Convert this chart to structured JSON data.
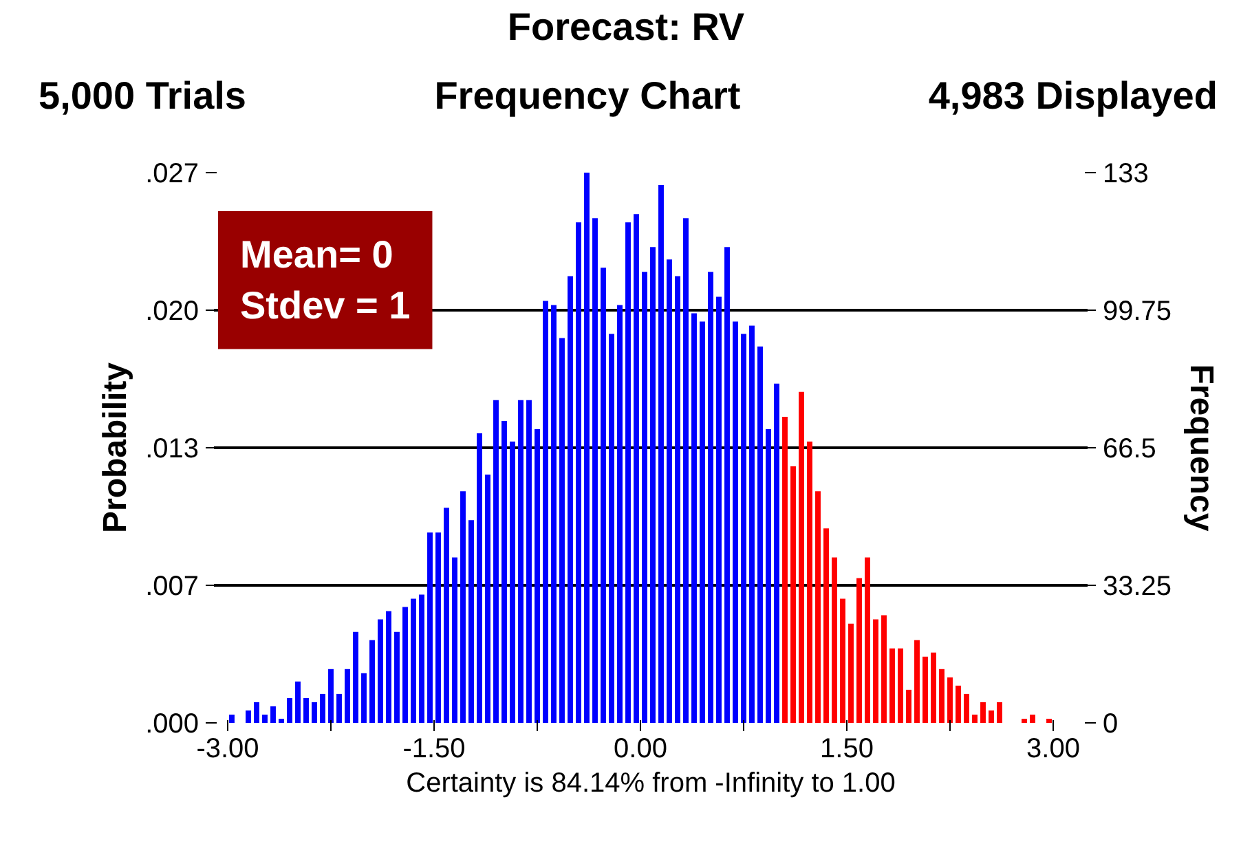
{
  "chart_data": {
    "type": "histogram",
    "title": "Forecast: RV",
    "subtitle": "Frequency Chart",
    "annotations": [
      "5,000 Trials",
      "4,983 Displayed",
      "Mean= 0\nStdev = 1"
    ],
    "xlabel": "Certainty is 84.14% from -Infinity to 1.00",
    "ylabel": "Probability",
    "y2label": "Frequency",
    "bins": [
      -3,
      -2.94,
      -2.88,
      -2.82,
      -2.76,
      -2.7,
      -2.64,
      -2.58,
      -2.52,
      -2.46,
      -2.4,
      -2.34,
      -2.28,
      -2.22,
      -2.16,
      -2.1,
      -2.04,
      -1.98,
      -1.92,
      -1.86,
      -1.8,
      -1.74,
      -1.68,
      -1.62,
      -1.56,
      -1.5,
      -1.44,
      -1.38,
      -1.32,
      -1.26,
      -1.2,
      -1.14,
      -1.08,
      -1.02,
      -0.96,
      -0.9,
      -0.84,
      -0.78,
      -0.72,
      -0.66,
      -0.6,
      -0.54,
      -0.48,
      -0.42,
      -0.36,
      -0.3,
      -0.24,
      -0.18,
      -0.12,
      -0.06,
      0,
      0.06,
      0.12,
      0.18,
      0.24,
      0.3,
      0.36,
      0.42,
      0.48,
      0.54,
      0.6,
      0.66,
      0.72,
      0.78,
      0.84,
      0.9,
      0.96,
      1.02,
      1.08,
      1.14,
      1.2,
      1.26,
      1.32,
      1.38,
      1.44,
      1.5,
      1.56,
      1.62,
      1.68,
      1.74,
      1.8,
      1.86,
      1.92,
      1.98,
      2.04,
      2.1,
      2.16,
      2.22,
      2.28,
      2.34,
      2.4,
      2.46,
      2.52,
      2.58,
      2.64,
      2.7,
      2.76,
      2.82,
      2.88,
      2.94,
      3
    ],
    "series": [
      {
        "axis": "y2",
        "values": [
          2,
          0,
          3,
          5,
          2,
          4,
          1,
          6,
          10,
          6,
          5,
          7,
          13,
          7,
          13,
          22,
          12,
          20,
          25,
          27,
          22,
          28,
          30,
          31,
          46,
          46,
          52,
          40,
          56,
          49,
          70,
          60,
          78,
          73,
          68,
          78,
          78,
          71,
          102,
          101,
          93,
          108,
          121,
          133,
          122,
          110,
          94,
          101,
          121,
          123,
          109,
          115,
          130,
          112,
          108,
          122,
          99,
          97,
          109,
          103,
          115,
          97,
          94,
          96,
          91,
          71,
          82,
          74,
          62,
          80,
          68,
          56,
          47,
          40,
          30,
          24,
          35,
          40,
          25,
          26,
          18,
          18,
          8,
          20,
          16,
          17,
          13,
          11,
          9,
          7,
          2,
          5,
          3,
          5,
          0,
          0,
          1,
          2,
          0,
          1
        ],
        "colors": [
          "#0000ff",
          "#0000ff",
          "#0000ff",
          "#0000ff",
          "#0000ff",
          "#0000ff",
          "#0000ff",
          "#0000ff",
          "#0000ff",
          "#0000ff",
          "#0000ff",
          "#0000ff",
          "#0000ff",
          "#0000ff",
          "#0000ff",
          "#0000ff",
          "#0000ff",
          "#0000ff",
          "#0000ff",
          "#0000ff",
          "#0000ff",
          "#0000ff",
          "#0000ff",
          "#0000ff",
          "#0000ff",
          "#0000ff",
          "#0000ff",
          "#0000ff",
          "#0000ff",
          "#0000ff",
          "#0000ff",
          "#0000ff",
          "#0000ff",
          "#0000ff",
          "#0000ff",
          "#0000ff",
          "#0000ff",
          "#0000ff",
          "#0000ff",
          "#0000ff",
          "#0000ff",
          "#0000ff",
          "#0000ff",
          "#0000ff",
          "#0000ff",
          "#0000ff",
          "#0000ff",
          "#0000ff",
          "#0000ff",
          "#0000ff",
          "#0000ff",
          "#0000ff",
          "#0000ff",
          "#0000ff",
          "#0000ff",
          "#0000ff",
          "#0000ff",
          "#0000ff",
          "#0000ff",
          "#0000ff",
          "#0000ff",
          "#0000ff",
          "#0000ff",
          "#0000ff",
          "#0000ff",
          "#0000ff",
          "#0000ff",
          "#ff0000",
          "#ff0000",
          "#ff0000",
          "#ff0000",
          "#ff0000",
          "#ff0000",
          "#ff0000",
          "#ff0000",
          "#ff0000",
          "#ff0000",
          "#ff0000",
          "#ff0000",
          "#ff0000",
          "#ff0000",
          "#ff0000",
          "#ff0000",
          "#ff0000",
          "#ff0000",
          "#ff0000",
          "#ff0000",
          "#ff0000",
          "#ff0000",
          "#ff0000",
          "#ff0000",
          "#ff0000",
          "#ff0000",
          "#ff0000",
          "#ff0000",
          "#ff0000",
          "#ff0000",
          "#ff0000",
          "#ff0000",
          "#ff0000"
        ]
      }
    ],
    "xlim": [
      -3.1,
      3.25
    ],
    "xticks": [
      {
        "value": -3,
        "label": "-3.00"
      },
      {
        "value": -2.25,
        "label": null
      },
      {
        "value": -1.5,
        "label": "-1.50"
      },
      {
        "value": -0.75,
        "label": null
      },
      {
        "value": 0,
        "label": "0.00"
      },
      {
        "value": 0.75,
        "label": null
      },
      {
        "value": 1.5,
        "label": "1.50"
      },
      {
        "value": 2.25,
        "label": null
      },
      {
        "value": 3,
        "label": "3.00"
      }
    ],
    "ylim": [
      0,
      0.026692
    ],
    "yticks": [
      {
        "value": 0,
        "label": ".000"
      },
      {
        "value": 0.006673,
        "label": ".007"
      },
      {
        "value": 0.013346,
        "label": ".013"
      },
      {
        "value": 0.020019,
        "label": ".020"
      },
      {
        "value": 0.026692,
        "label": ".027"
      }
    ],
    "y2lim": [
      0,
      133
    ],
    "y2ticks": [
      0,
      33.25,
      66.5,
      99.75,
      133
    ],
    "grid": "y"
  }
}
